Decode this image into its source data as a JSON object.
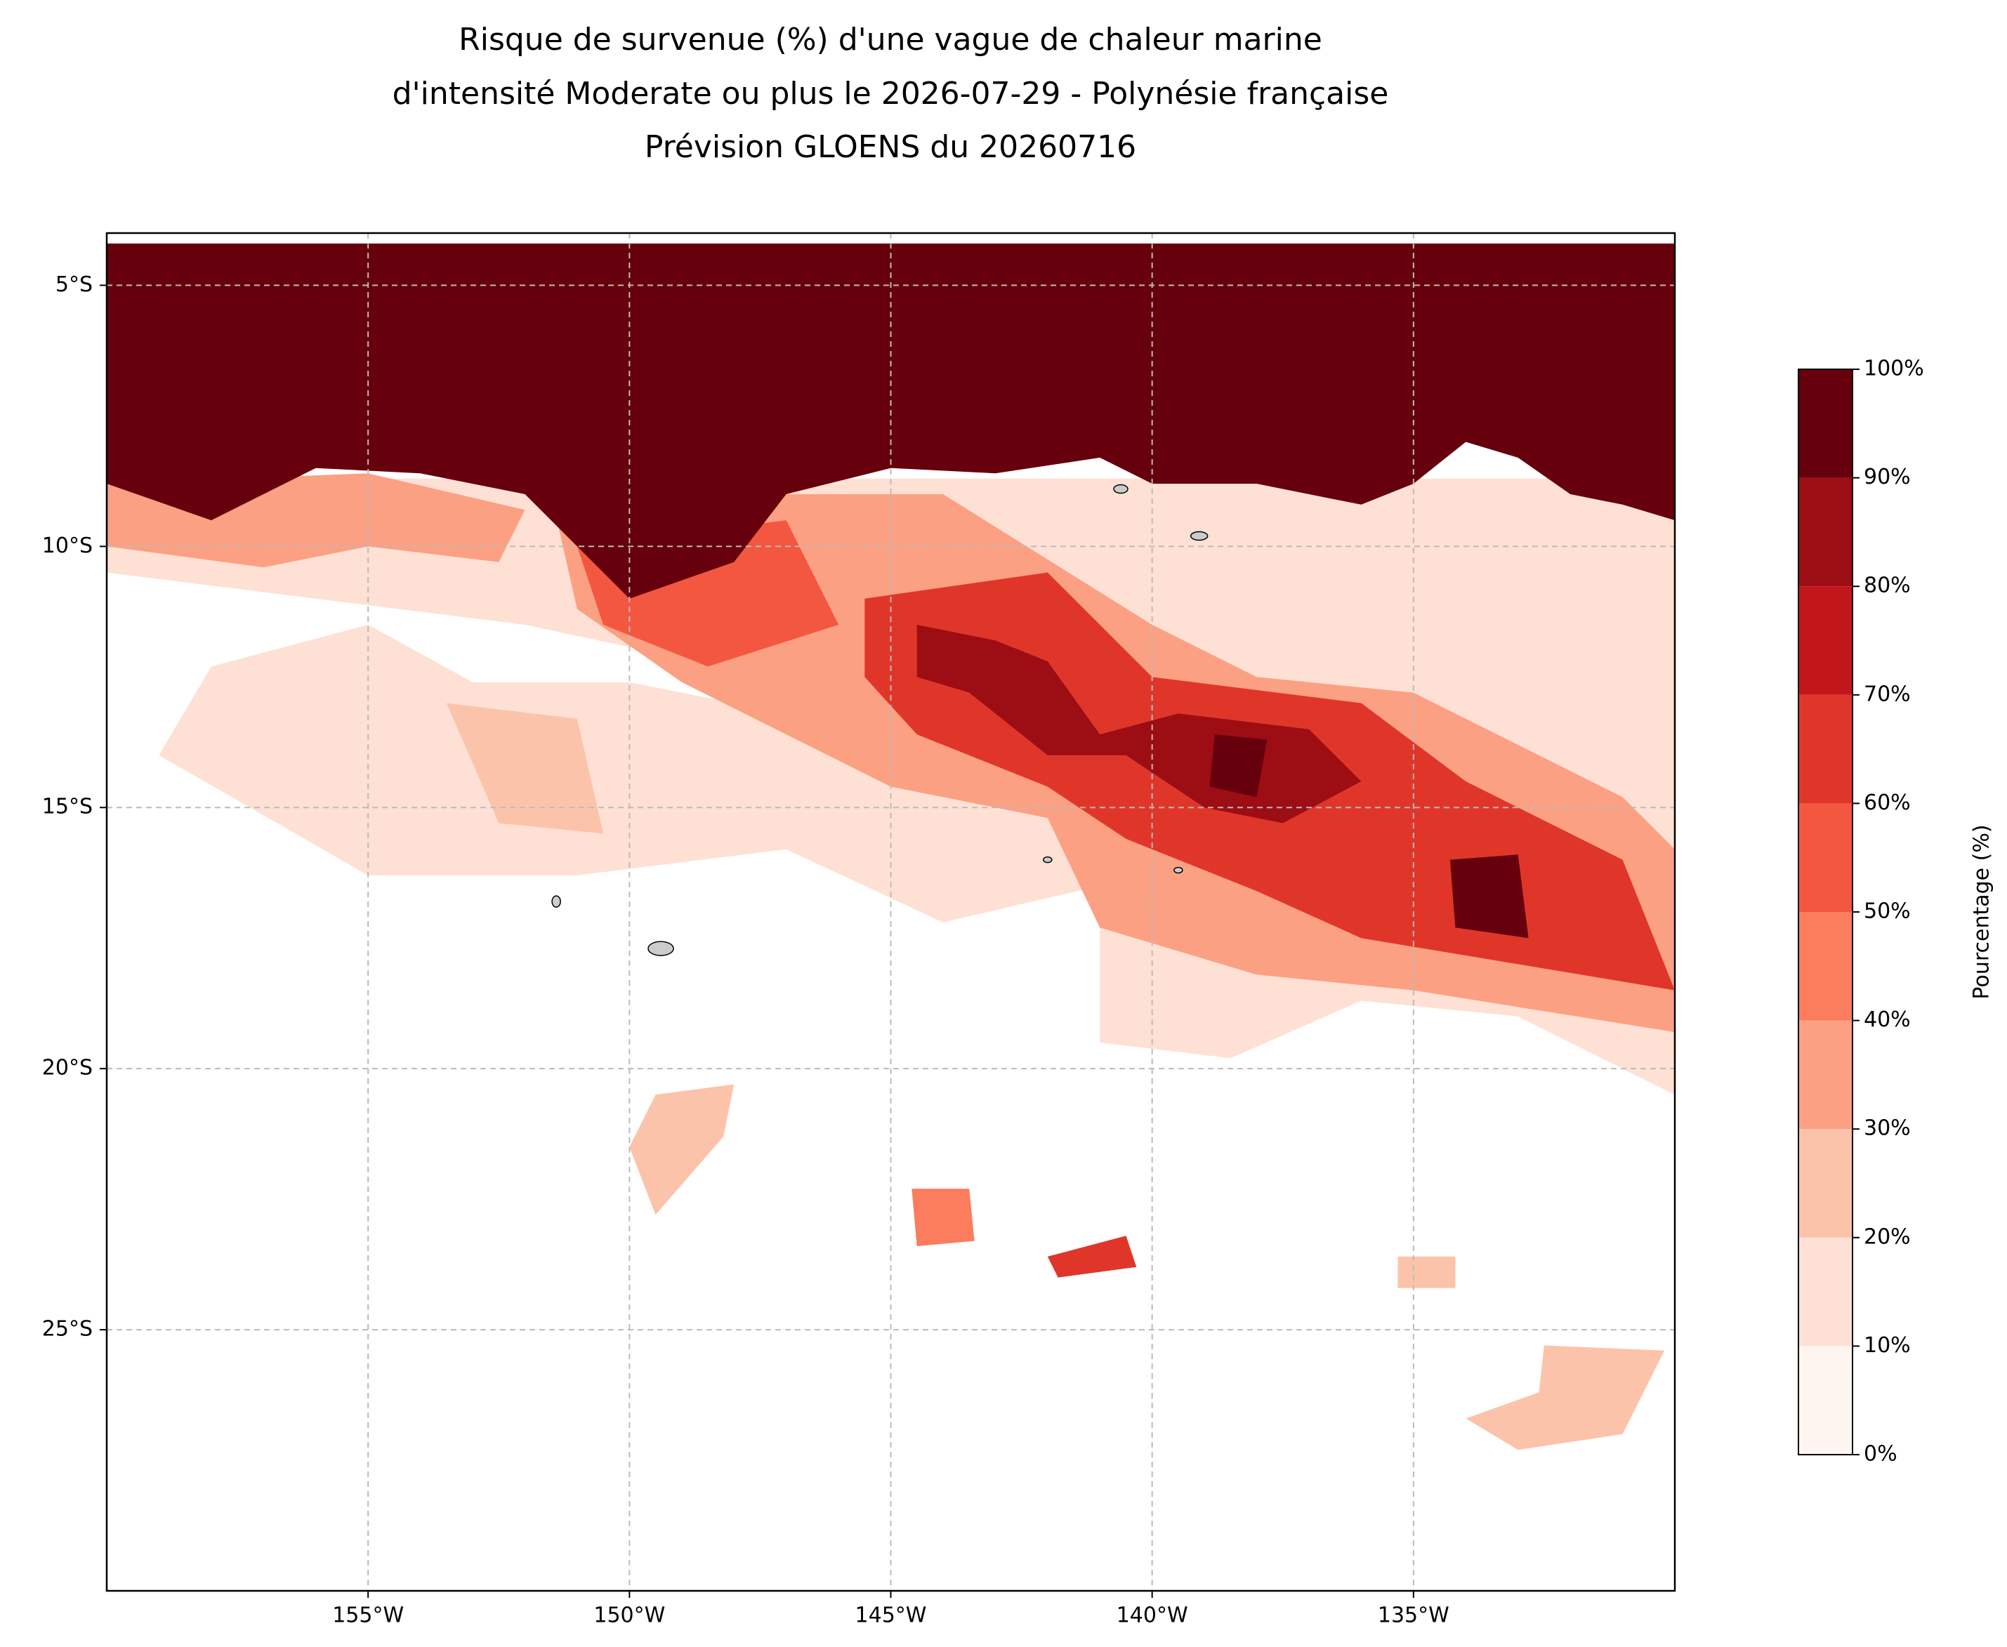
{
  "chart_data": {
    "type": "filled-contour-map",
    "title": [
      "Risque de survenue (%) d'une vague de chaleur marine",
      "d'intensité Moderate ou plus le 2026-07-29 - Polynésie française",
      "Prévision GLOENS du 20260716"
    ],
    "xlim": [
      -160,
      -130
    ],
    "ylim": [
      -30,
      -4
    ],
    "xticks": [
      {
        "value": -155,
        "label": "155°W"
      },
      {
        "value": -150,
        "label": "150°W"
      },
      {
        "value": -145,
        "label": "145°W"
      },
      {
        "value": -140,
        "label": "140°W"
      },
      {
        "value": -135,
        "label": "135°W"
      }
    ],
    "yticks": [
      {
        "value": -5,
        "label": "5°S"
      },
      {
        "value": -10,
        "label": "10°S"
      },
      {
        "value": -15,
        "label": "15°S"
      },
      {
        "value": -20,
        "label": "20°S"
      },
      {
        "value": -25,
        "label": "25°S"
      }
    ],
    "grid": true,
    "colorbar": {
      "label": "Pourcentage (%)",
      "lim": [
        0,
        100
      ],
      "ticks": [
        {
          "value": 0,
          "label": "0%"
        },
        {
          "value": 10,
          "label": "10%"
        },
        {
          "value": 20,
          "label": "20%"
        },
        {
          "value": 30,
          "label": "30%"
        },
        {
          "value": 40,
          "label": "40%"
        },
        {
          "value": 50,
          "label": "50%"
        },
        {
          "value": 60,
          "label": "60%"
        },
        {
          "value": 70,
          "label": "70%"
        },
        {
          "value": 80,
          "label": "80%"
        },
        {
          "value": 90,
          "label": "90%"
        },
        {
          "value": 100,
          "label": "100%"
        }
      ],
      "colors": [
        "#fff5f0",
        "#fee1d4",
        "#fcc3ab",
        "#fca083",
        "#fb7d5d",
        "#f3573f",
        "#e0362a",
        "#c3161b",
        "#9d0d14",
        "#67000d"
      ]
    }
  }
}
